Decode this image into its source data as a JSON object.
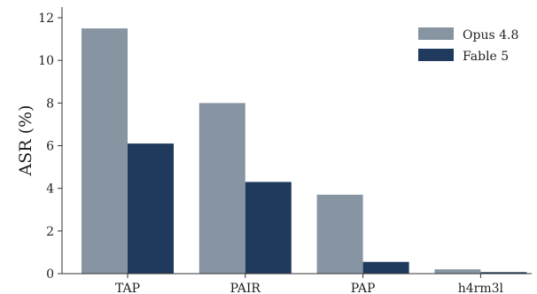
{
  "chart_data": {
    "type": "bar",
    "categories": [
      "TAP",
      "PAIR",
      "PAP",
      "h4rm3l"
    ],
    "series": [
      {
        "name": "Opus 4.8",
        "values": [
          11.5,
          8.0,
          3.7,
          0.2
        ],
        "color": "#8795a3"
      },
      {
        "name": "Fable 5",
        "values": [
          6.1,
          4.3,
          0.55,
          0.07
        ],
        "color": "#1f3a5c"
      }
    ],
    "title": "",
    "xlabel": "",
    "ylabel": "ASR (%)",
    "ylim": [
      0,
      12.5
    ],
    "yticks": [
      0,
      2,
      4,
      6,
      8,
      10,
      12
    ],
    "grid": false,
    "legend_position": "top-right"
  }
}
